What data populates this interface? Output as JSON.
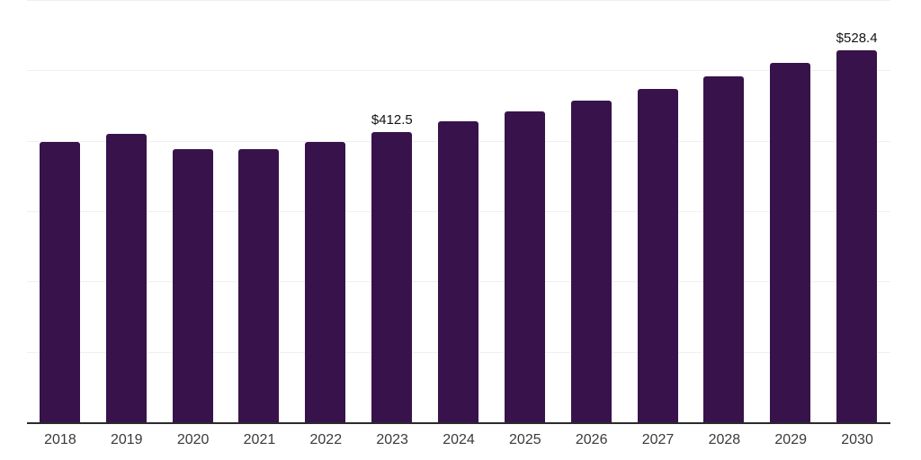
{
  "chart_data": {
    "type": "bar",
    "title": "",
    "xlabel": "",
    "ylabel": "",
    "categories": [
      "2018",
      "2019",
      "2020",
      "2021",
      "2022",
      "2023",
      "2024",
      "2025",
      "2026",
      "2027",
      "2028",
      "2029",
      "2030"
    ],
    "values": [
      397.9,
      409.2,
      387.6,
      387.6,
      398.6,
      412.5,
      427.4,
      441.5,
      457.3,
      473.4,
      491.2,
      510.1,
      528.4
    ],
    "data_labels": {
      "2023": "$412.5",
      "2030": "$528.4"
    },
    "ylim": [
      0,
      600
    ],
    "grid_step": 100,
    "grid": true,
    "legend": false,
    "colors": {
      "bar": "#37124b",
      "gridline": "#f0f0f0",
      "axis_line": "#2b2b2b",
      "tick_label": "#3a3a3a",
      "data_label": "#121212"
    }
  }
}
